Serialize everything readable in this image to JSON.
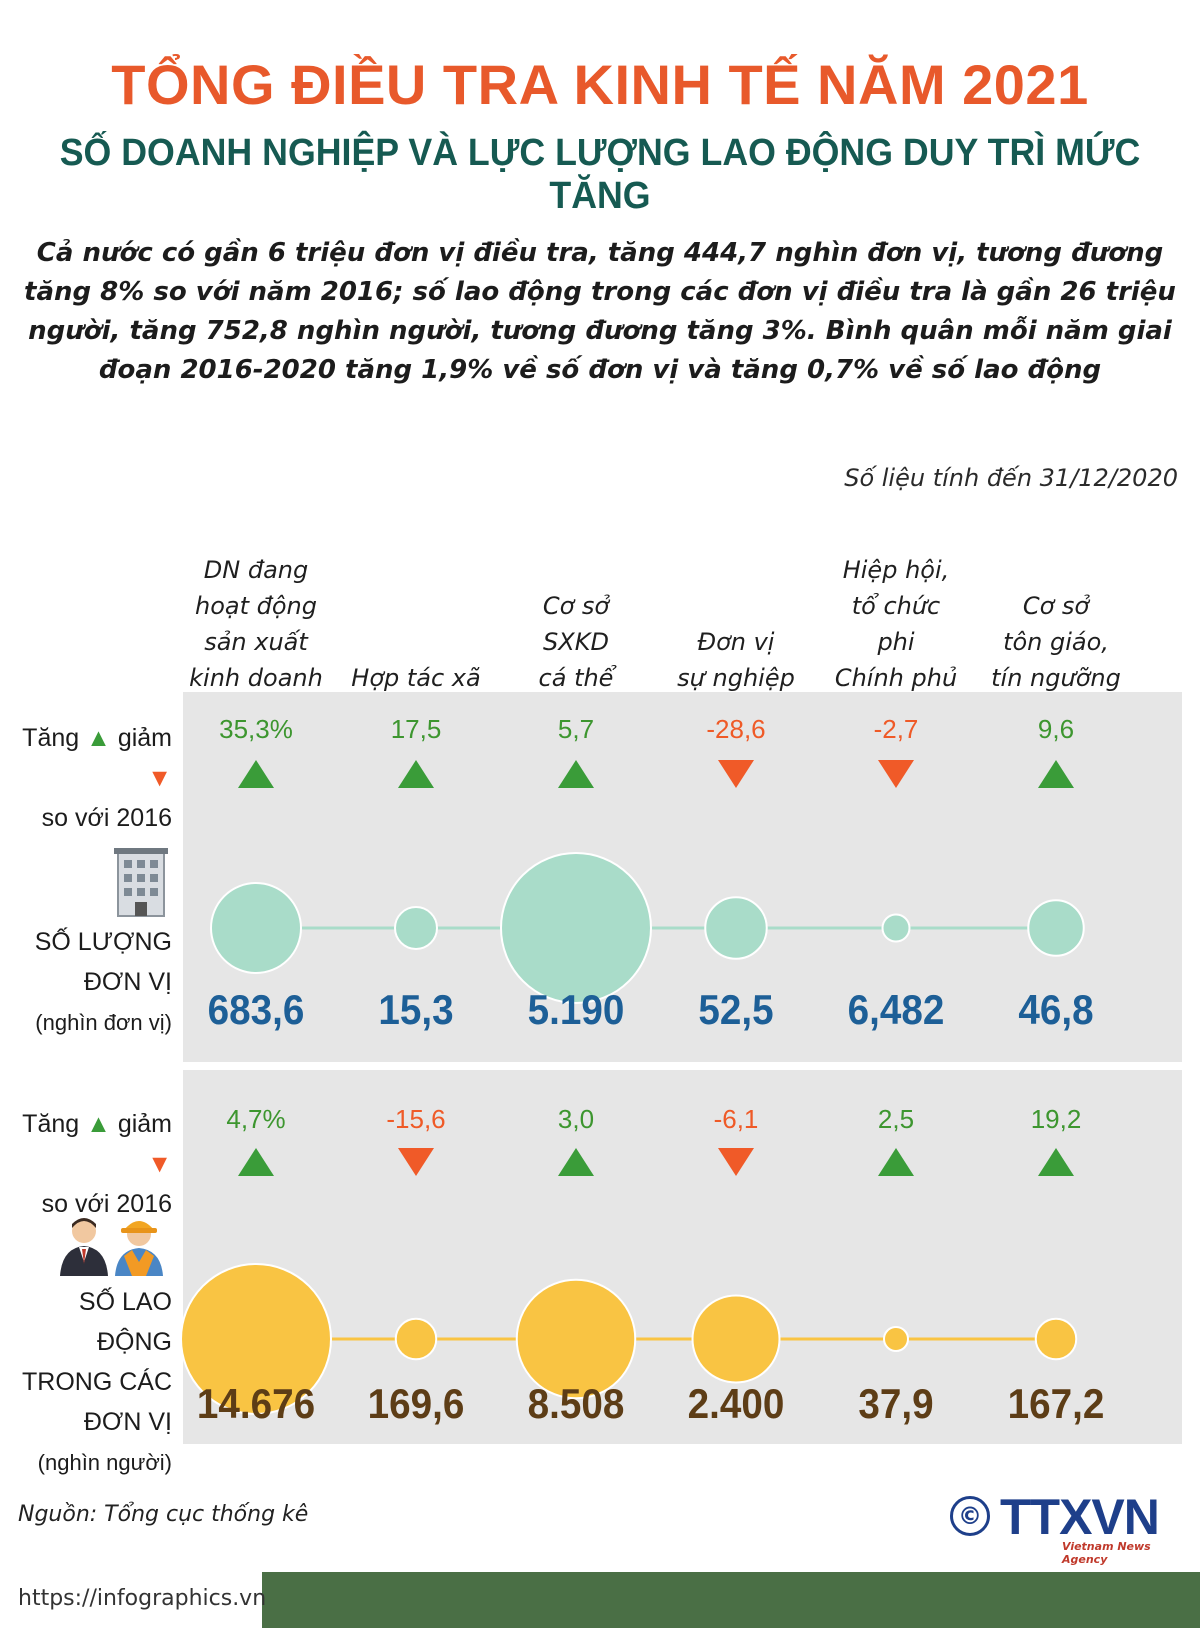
{
  "title": "TỔNG ĐIỀU TRA KINH TẾ NĂM 2021",
  "subtitle": "SỐ DOANH NGHIỆP VÀ LỰC LƯỢNG LAO ĐỘNG DUY TRÌ MỨC TĂNG",
  "intro": "Cả nước có gần 6 triệu đơn vị điều tra, tăng 444,7 nghìn đơn vị, tương đương tăng 8% so với năm 2016; số lao động trong các đơn vị điều tra là gần 26 triệu người, tăng 752,8 nghìn người, tương đương tăng 3%. Bình quân mỗi năm giai đoạn 2016-2020 tăng 1,9% về số đơn vị và tăng 0,7% về số lao động",
  "as_of": "Số liệu tính đến 31/12/2020",
  "row_labels": {
    "change_increase": "Tăng",
    "change_decrease": "giảm",
    "change_suffix": "so với 2016",
    "units_title_1": "SỐ LƯỢNG",
    "units_title_2": "ĐƠN VỊ",
    "units_unit": "(nghìn đơn vị)",
    "labor_title_1": "SỐ LAO ĐỘNG",
    "labor_title_2": "TRONG CÁC",
    "labor_title_3": "ĐƠN VỊ",
    "labor_unit": "(nghìn người)"
  },
  "columns": [
    {
      "label": "DN đang\nhoạt động\nsản xuất\nkinh doanh"
    },
    {
      "label": "Hợp tác xã"
    },
    {
      "label": "Cơ sở\nSXKD\ncá thể"
    },
    {
      "label": "Đơn vị\nsự nghiệp"
    },
    {
      "label": "Hiệp hội,\ntổ chức\nphi\nChính phủ"
    },
    {
      "label": "Cơ sở\ntôn giáo,\ntín ngưỡng"
    }
  ],
  "chart_data": [
    {
      "type": "bubble",
      "title": "SỐ LƯỢNG ĐƠN VỊ",
      "unit": "(nghìn đơn vị)",
      "categories": [
        "DN đang hoạt động sản xuất kinh doanh",
        "Hợp tác xã",
        "Cơ sở SXKD cá thể",
        "Đơn vị sự nghiệp",
        "Hiệp hội, tổ chức phi Chính phủ",
        "Cơ sở tôn giáo, tín ngưỡng"
      ],
      "value_labels": [
        "683,6",
        "15,3",
        "5.190",
        "52,5",
        "6,482",
        "46,8"
      ],
      "relative_size": [
        0.6,
        0.28,
        1.0,
        0.41,
        0.18,
        0.37
      ],
      "change_labels": [
        "35,3%",
        "17,5",
        "5,7",
        "-28,6",
        "-2,7",
        "9,6"
      ],
      "change_values": [
        35.3,
        17.5,
        5.7,
        -28.6,
        -2.7,
        9.6
      ],
      "color": "#a9dcc9",
      "line_color": "#a9dcc9"
    },
    {
      "type": "bubble",
      "title": "SỐ LAO ĐỘNG TRONG CÁC ĐƠN VỊ",
      "unit": "(nghìn người)",
      "categories": [
        "DN đang hoạt động sản xuất kinh doanh",
        "Hợp tác xã",
        "Cơ sở SXKD cá thể",
        "Đơn vị sự nghiệp",
        "Hiệp hội, tổ chức phi Chính phủ",
        "Cơ sở tôn giáo, tín ngưỡng"
      ],
      "value_labels": [
        "14.676",
        "169,6",
        "8.508",
        "2.400",
        "37,9",
        "167,2"
      ],
      "relative_size": [
        1.0,
        0.27,
        0.79,
        0.58,
        0.15,
        0.27
      ],
      "change_labels": [
        "4,7%",
        "-15,6",
        "3,0",
        "-6,1",
        "2,5",
        "19,2"
      ],
      "change_values": [
        4.7,
        -15.6,
        3.0,
        -6.1,
        2.5,
        19.2
      ],
      "color": "#f9c443",
      "line_color": "#f9c443"
    }
  ],
  "colors": {
    "title": "#e8592b",
    "subtitle": "#165a52",
    "increase": "#3a9c39",
    "decrease": "#f05a28",
    "units_value": "#1d5f97",
    "labor_value": "#5d3d16",
    "panel": "#e6e6e6"
  },
  "icons": [
    "office-building-icon",
    "businessman-icon",
    "construction-worker-icon",
    "triangle-up-icon",
    "triangle-down-icon",
    "copyright-icon"
  ],
  "source": "Nguồn: Tổng cục thống kê",
  "url": "https://infographics.vn",
  "logo": {
    "text": "TTXVN",
    "sub": "Vietnam News Agency",
    "copyright": "©"
  }
}
